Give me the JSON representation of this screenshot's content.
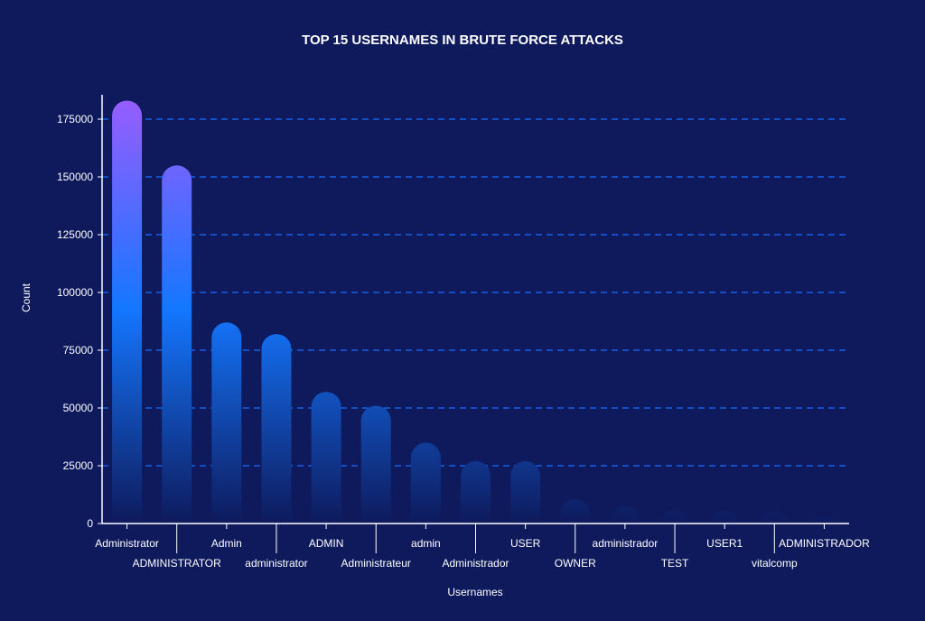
{
  "chart_data": {
    "type": "bar",
    "title": "TOP 15 USERNAMES IN BRUTE FORCE ATTACKS",
    "xlabel": "Usernames",
    "ylabel": "Count",
    "ylim": [
      0,
      185000
    ],
    "yticks": [
      0,
      25000,
      50000,
      75000,
      100000,
      125000,
      150000,
      175000
    ],
    "grid": "horizontal-dashed",
    "categories": [
      "Administrator",
      "ADMINISTRATOR",
      "Admin",
      "administrator",
      "ADMIN",
      "Administrateur",
      "admin",
      "Administrador",
      "USER",
      "OWNER",
      "administrador",
      "TEST",
      "USER1",
      "vitalcomp",
      "ADMINISTRADOR"
    ],
    "values": [
      183000,
      155000,
      87000,
      82000,
      57000,
      51000,
      35000,
      27000,
      27000,
      10500,
      7500,
      5500,
      5500,
      5000,
      3000
    ],
    "colors": {
      "background": "#0e1a5c",
      "grid": "#1a6dff",
      "bar_top": "#9a5cff",
      "bar_mid": "#1477ff",
      "bar_bottom": "#0e1a5c",
      "axis": "#ffffff"
    }
  }
}
